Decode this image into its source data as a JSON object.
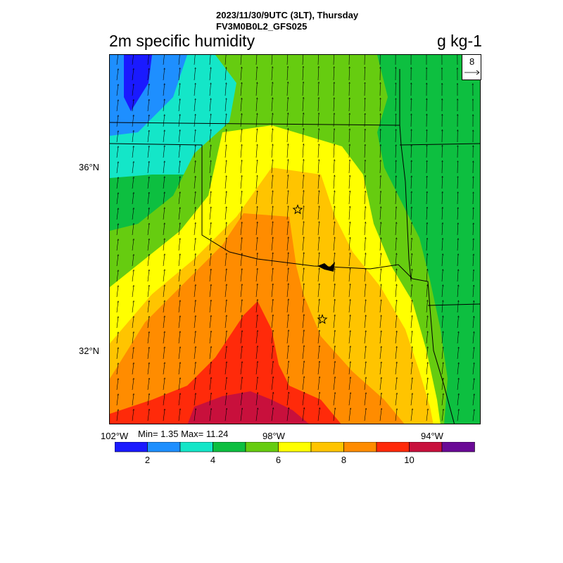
{
  "header": {
    "datetime": "2023/11/30/9UTC (3LT), Thursday",
    "model": "FV3M0B0L2_GFS025"
  },
  "title": "2m specific humidity",
  "units": "g kg-1",
  "ref_vector": {
    "magnitude": "8"
  },
  "axes": {
    "lat_labels": [
      "36°N",
      "32°N"
    ],
    "lon_labels": [
      "102°W",
      "98°W",
      "94°W"
    ]
  },
  "stats": "Min= 1.35 Max= 11.24",
  "colorbar": {
    "colors": [
      "#1a1aff",
      "#1e8fff",
      "#14e6c8",
      "#0dbf40",
      "#66cc10",
      "#ffff00",
      "#ffc400",
      "#ff8c00",
      "#ff2a0a",
      "#c8103c",
      "#6a0a96"
    ],
    "labels": [
      "2",
      "4",
      "6",
      "8",
      "10"
    ]
  },
  "markers": [
    "star",
    "star"
  ]
}
